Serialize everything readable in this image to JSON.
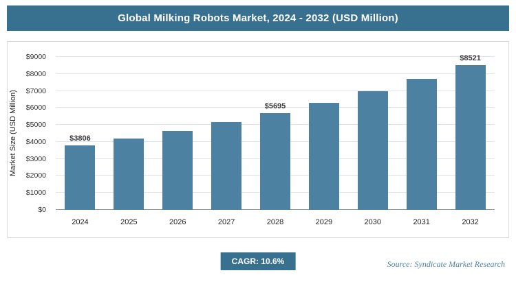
{
  "header": {
    "title": "Global Milking Robots Market, 2024 - 2032 (USD Million)"
  },
  "chart_data": {
    "type": "bar",
    "title": "Global Milking Robots Market, 2024 - 2032 (USD Million)",
    "categories": [
      "2024",
      "2025",
      "2026",
      "2027",
      "2028",
      "2029",
      "2030",
      "2031",
      "2032"
    ],
    "values": [
      3806,
      4209,
      4656,
      5149,
      5695,
      6299,
      6966,
      7705,
      8521
    ],
    "labeled_points": {
      "2024": "$3806",
      "2028": "$5695",
      "2032": "$8521"
    },
    "xlabel": "",
    "ylabel": "Market Size (USD Million)",
    "ylim": [
      0,
      9000
    ],
    "ytick_step": 1000,
    "ytick_labels": [
      "$0",
      "$1000",
      "$2000",
      "$3000",
      "$4000",
      "$5000",
      "$6000",
      "$7000",
      "$8000",
      "$9000"
    ],
    "grid": true,
    "legend": "none",
    "bar_color": "#4d81a1"
  },
  "footer": {
    "cagr_label": "CAGR: 10.6%",
    "source": "Source: Syndicate Market Research"
  },
  "colors": {
    "title_bar_bg": "#38718f",
    "accent": "#38718f",
    "bar": "#4d81a1",
    "gridline": "#dde4e9",
    "axis_line": "#8d98a0",
    "source_text": "#4d81a1"
  }
}
